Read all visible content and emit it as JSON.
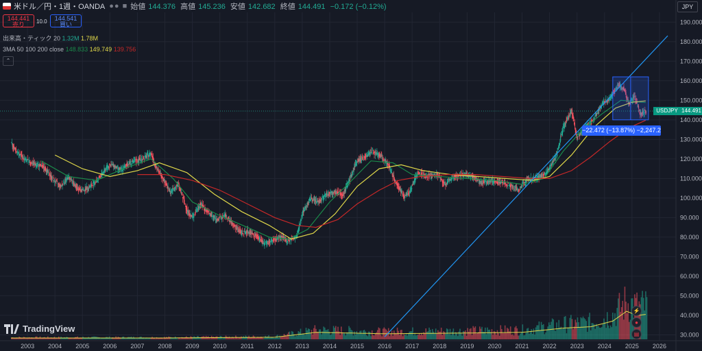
{
  "header": {
    "symbol": "米ドル／円・1週・OANDA",
    "open_label": "始値",
    "open": "144.376",
    "high_label": "高値",
    "high": "145.236",
    "low_label": "安値",
    "low": "142.682",
    "close_label": "終値",
    "close": "144.491",
    "change": "−0.172 (−0.12%)"
  },
  "trade": {
    "sell_price": "144.441",
    "sell_label": "売り",
    "spread": "10.0",
    "buy_price": "144.541",
    "buy_label": "買い"
  },
  "indicators": {
    "volume_label": "出来高・ティック 20",
    "volume_v1": "1.32M",
    "volume_v2": "1.78M",
    "ma_label": "3MA 50 100 200 close",
    "ma50": "148.833",
    "ma100": "149.749",
    "ma200": "139.756"
  },
  "currency": "JPY",
  "symbol_tag": "USDJPY",
  "price_tag": "144.491",
  "measure_label": "−22.472 (−13.87%) −2,247.2",
  "logo_text": "TradingView",
  "colors": {
    "up": "#22ab94",
    "down": "#f7525f",
    "ma50": "#1b8a4a",
    "ma100": "#e0d84a",
    "ma200": "#c62828",
    "trend": "#2196f3"
  },
  "chart_data": {
    "type": "line",
    "title": "",
    "ylabel": "",
    "xlabel": "",
    "y_ticks": [
      30,
      40,
      50,
      60,
      70,
      80,
      90,
      100,
      110,
      120,
      130,
      140,
      150,
      160,
      170,
      180,
      190
    ],
    "y_tick_labels": [
      "30.000",
      "40.000",
      "50.000",
      "60.000",
      "70.000",
      "80.000",
      "90.000",
      "100.000",
      "110.000",
      "120.000",
      "130.000",
      "140.000",
      "150.000",
      "160.000",
      "170.000",
      "180.000",
      "190.000"
    ],
    "x_ticks": [
      2003,
      2004,
      2005,
      2006,
      2007,
      2008,
      2009,
      2010,
      2011,
      2012,
      2013,
      2014,
      2015,
      2016,
      2017,
      2018,
      2019,
      2020,
      2021,
      2022,
      2023,
      2024,
      2025,
      2026
    ],
    "x_tick_labels": [
      "2003",
      "2004",
      "2005",
      "2006",
      "2007",
      "2008",
      "2009",
      "2010",
      "2011",
      "2012",
      "2013",
      "2014",
      "2015",
      "2016",
      "2017",
      "2018",
      "2019",
      "2020",
      "2021",
      "2022",
      "2023",
      "2024",
      "2025",
      "2026"
    ],
    "ylim": [
      27,
      195
    ],
    "xlim": [
      2002.0,
      2026.6
    ],
    "last_price": 144.491,
    "series": [
      {
        "role": "price",
        "x": [
          2002.4,
          2002.6,
          2002.8,
          2003.0,
          2003.3,
          2003.6,
          2003.9,
          2004.2,
          2004.5,
          2004.8,
          2005.0,
          2005.3,
          2005.6,
          2005.9,
          2006.1,
          2006.4,
          2006.7,
          2007.0,
          2007.3,
          2007.5,
          2007.7,
          2007.9,
          2008.2,
          2008.5,
          2008.8,
          2009.0,
          2009.3,
          2009.6,
          2009.9,
          2010.2,
          2010.5,
          2010.8,
          2011.0,
          2011.3,
          2011.6,
          2011.9,
          2012.2,
          2012.5,
          2012.8,
          2013.0,
          2013.3,
          2013.6,
          2013.9,
          2014.2,
          2014.5,
          2014.8,
          2015.0,
          2015.3,
          2015.5,
          2015.8,
          2016.1,
          2016.4,
          2016.7,
          2016.9,
          2017.2,
          2017.5,
          2017.9,
          2018.2,
          2018.5,
          2018.9,
          2019.2,
          2019.5,
          2019.9,
          2020.2,
          2020.5,
          2020.9,
          2021.2,
          2021.5,
          2021.9,
          2022.2,
          2022.5,
          2022.8,
          2023.0,
          2023.3,
          2023.6,
          2023.9,
          2024.2,
          2024.5,
          2024.7,
          2024.9,
          2025.1,
          2025.3,
          2025.5
        ],
        "values": [
          128,
          124,
          121,
          119,
          117,
          116,
          110,
          106,
          111,
          105,
          104,
          106,
          110,
          116,
          117,
          114,
          118,
          119,
          121,
          123,
          115,
          111,
          103,
          107,
          94,
          90,
          97,
          92,
          89,
          91,
          86,
          82,
          83,
          81,
          77,
          78,
          80,
          78,
          80,
          92,
          100,
          98,
          102,
          103,
          102,
          112,
          119,
          121,
          124,
          122,
          118,
          108,
          101,
          103,
          113,
          111,
          112,
          107,
          111,
          112,
          111,
          108,
          109,
          108,
          107,
          104,
          110,
          110,
          113,
          120,
          136,
          145,
          131,
          136,
          140,
          148,
          151,
          158,
          156,
          148,
          152,
          143,
          144.491
        ]
      },
      {
        "role": "ma50",
        "x": [
          2003.5,
          2004.5,
          2005.5,
          2006.5,
          2007.5,
          2008.3,
          2009.0,
          2010.0,
          2011.0,
          2011.8,
          2012.5,
          2013.2,
          2014.0,
          2014.8,
          2015.5,
          2016.3,
          2017.0,
          2018.0,
          2019.0,
          2020.0,
          2021.0,
          2021.8,
          2022.5,
          2023.2,
          2023.9,
          2024.6,
          2025.5
        ],
        "values": [
          119,
          111,
          109,
          115,
          120,
          110,
          98,
          91,
          85,
          80,
          79,
          84,
          98,
          109,
          119,
          118,
          112,
          111,
          110,
          109,
          107,
          110,
          124,
          135,
          143,
          150,
          148.8
        ]
      },
      {
        "role": "ma100",
        "x": [
          2004.0,
          2005.0,
          2006.0,
          2007.0,
          2007.8,
          2008.8,
          2009.8,
          2010.8,
          2011.8,
          2012.6,
          2013.4,
          2014.2,
          2015.0,
          2015.8,
          2016.6,
          2017.4,
          2018.4,
          2019.4,
          2020.4,
          2021.4,
          2022.0,
          2022.8,
          2023.6,
          2024.4,
          2025.0,
          2025.5
        ],
        "values": [
          122,
          115,
          111,
          114,
          118,
          113,
          102,
          93,
          86,
          79,
          82,
          92,
          106,
          115,
          117,
          114,
          112,
          111,
          110,
          109,
          111,
          122,
          136,
          146,
          149,
          149.7
        ]
      },
      {
        "role": "ma200",
        "x": [
          2007.0,
          2008.0,
          2009.0,
          2010.0,
          2011.0,
          2012.0,
          2012.8,
          2013.5,
          2014.3,
          2015.0,
          2015.8,
          2016.5,
          2017.3,
          2018.3,
          2019.3,
          2020.3,
          2021.3,
          2022.0,
          2022.8,
          2023.5,
          2024.2,
          2024.9,
          2025.5
        ],
        "values": [
          112,
          112,
          109,
          104,
          97,
          90,
          86,
          85,
          89,
          97,
          104,
          109,
          111,
          112,
          112,
          111,
          110,
          110,
          114,
          121,
          129,
          136,
          139.8
        ]
      },
      {
        "role": "trendline",
        "x": [
          2016.0,
          2026.3
        ],
        "values": [
          29,
          183
        ]
      }
    ],
    "volume": {
      "x": [
        2002.5,
        2005.0,
        2008.0,
        2012.0,
        2013.5,
        2016.0,
        2019.0,
        2021.0,
        2022.5,
        2023.5,
        2024.3,
        2024.8,
        2025.2,
        2025.5
      ],
      "values": [
        0.1,
        0.1,
        0.1,
        0.15,
        0.5,
        0.4,
        0.45,
        0.5,
        0.8,
        0.9,
        1.3,
        2.0,
        1.7,
        1.78
      ]
    },
    "measure_box": {
      "x": [
        2024.3,
        2025.6
      ],
      "y": [
        140,
        162
      ]
    }
  }
}
